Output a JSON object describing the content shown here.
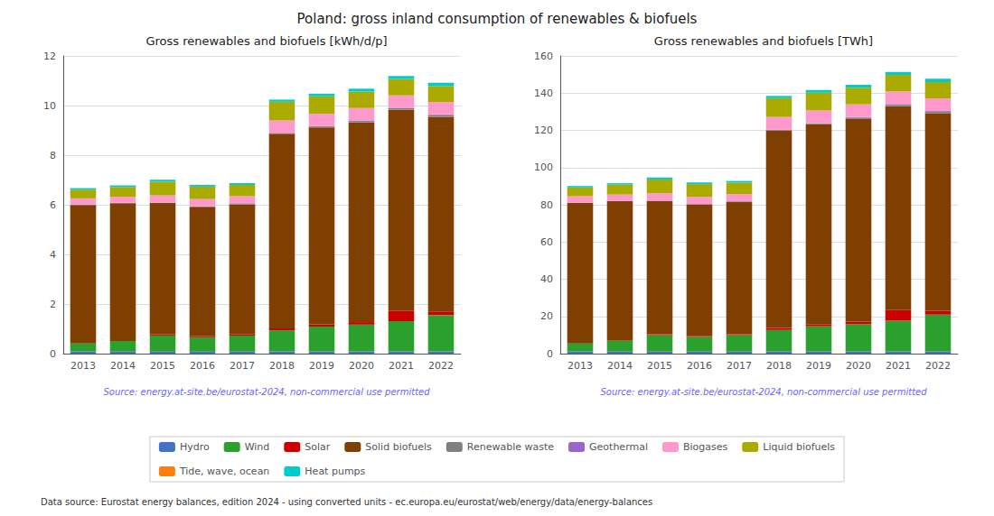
{
  "title": "Poland: gross inland consumption of renewables & biofuels",
  "annotations": [
    "Data source: Eurostat energy balances, edition 2024 - using converted units - ec.europa.eu/eurostat/web/energy/data/energy-balances"
  ],
  "legend": "bottom",
  "chart_data": [
    {
      "type": "bar",
      "stacked": true,
      "grid": true,
      "title": "Gross renewables and biofuels [kWh/d/p]",
      "annotations": [
        "Source: energy.at-site.be/eurostat-2024, non-commercial use permitted"
      ],
      "categories": [
        "2013",
        "2014",
        "2015",
        "2016",
        "2017",
        "2018",
        "2019",
        "2020",
        "2021",
        "2022"
      ],
      "ylim": [
        0,
        12
      ],
      "yticks": [
        0,
        2,
        4,
        6,
        8,
        10,
        12
      ],
      "series": [
        {
          "name": "Hydro",
          "color": "#4472c4",
          "values": [
            0.09,
            0.08,
            0.08,
            0.08,
            0.08,
            0.09,
            0.09,
            0.09,
            0.09,
            0.09
          ]
        },
        {
          "name": "Wind",
          "color": "#2ca02c",
          "values": [
            0.32,
            0.43,
            0.65,
            0.58,
            0.65,
            0.85,
            1.0,
            1.08,
            1.22,
            1.46
          ]
        },
        {
          "name": "Solar",
          "color": "#cc0000",
          "values": [
            0.0,
            0.0,
            0.04,
            0.04,
            0.04,
            0.08,
            0.08,
            0.1,
            0.42,
            0.15
          ]
        },
        {
          "name": "Solid biofuels",
          "color": "#7f3f00",
          "values": [
            5.58,
            5.55,
            5.3,
            5.22,
            5.25,
            7.84,
            7.95,
            8.05,
            8.1,
            7.85
          ]
        },
        {
          "name": "Renewable waste",
          "color": "#808080",
          "values": [
            0.01,
            0.01,
            0.01,
            0.01,
            0.03,
            0.03,
            0.04,
            0.06,
            0.06,
            0.07
          ]
        },
        {
          "name": "Geothermal",
          "color": "#9966cc",
          "values": [
            0.01,
            0.01,
            0.01,
            0.01,
            0.01,
            0.01,
            0.01,
            0.02,
            0.02,
            0.02
          ]
        },
        {
          "name": "Biogases",
          "color": "#ff99cc",
          "values": [
            0.25,
            0.25,
            0.29,
            0.29,
            0.29,
            0.5,
            0.5,
            0.5,
            0.5,
            0.5
          ]
        },
        {
          "name": "Liquid biofuels",
          "color": "#aaaa00",
          "values": [
            0.35,
            0.39,
            0.55,
            0.5,
            0.45,
            0.75,
            0.7,
            0.66,
            0.66,
            0.65
          ]
        },
        {
          "name": "Tide, wave, ocean",
          "color": "#ff7f0e",
          "values": [
            0.0,
            0.0,
            0.0,
            0.0,
            0.0,
            0.0,
            0.0,
            0.0,
            0.0,
            0.0
          ]
        },
        {
          "name": "Heat pumps",
          "color": "#00cccc",
          "values": [
            0.06,
            0.06,
            0.08,
            0.07,
            0.07,
            0.09,
            0.11,
            0.12,
            0.12,
            0.13
          ]
        }
      ]
    },
    {
      "type": "bar",
      "stacked": true,
      "grid": true,
      "title": "Gross renewables and biofuels [TWh]",
      "annotations": [
        "Source: energy.at-site.be/eurostat-2024, non-commercial use permitted"
      ],
      "categories": [
        "2013",
        "2014",
        "2015",
        "2016",
        "2017",
        "2018",
        "2019",
        "2020",
        "2021",
        "2022"
      ],
      "ylim": [
        0,
        160
      ],
      "yticks": [
        0,
        20,
        40,
        60,
        80,
        100,
        120,
        140,
        160
      ],
      "series": [
        {
          "name": "Hydro",
          "color": "#4472c4",
          "values": [
            1.2,
            1.1,
            1.1,
            1.1,
            1.1,
            1.2,
            1.2,
            1.2,
            1.2,
            1.2
          ]
        },
        {
          "name": "Wind",
          "color": "#2ca02c",
          "values": [
            4.3,
            5.8,
            8.8,
            7.9,
            8.8,
            11.5,
            13.5,
            14.6,
            16.5,
            19.8
          ]
        },
        {
          "name": "Solar",
          "color": "#cc0000",
          "values": [
            0.0,
            0.0,
            0.5,
            0.5,
            0.5,
            1.1,
            1.1,
            1.4,
            5.7,
            2.0
          ]
        },
        {
          "name": "Solid biofuels",
          "color": "#7f3f00",
          "values": [
            75.5,
            75.0,
            71.7,
            70.7,
            71.0,
            106.1,
            107.5,
            108.9,
            109.6,
            106.2
          ]
        },
        {
          "name": "Renewable waste",
          "color": "#808080",
          "values": [
            0.1,
            0.1,
            0.1,
            0.1,
            0.4,
            0.4,
            0.5,
            0.8,
            0.8,
            0.9
          ]
        },
        {
          "name": "Geothermal",
          "color": "#9966cc",
          "values": [
            0.1,
            0.1,
            0.1,
            0.1,
            0.1,
            0.1,
            0.1,
            0.3,
            0.3,
            0.3
          ]
        },
        {
          "name": "Biogases",
          "color": "#ff99cc",
          "values": [
            3.4,
            3.4,
            3.9,
            3.9,
            3.9,
            6.8,
            6.8,
            6.8,
            6.8,
            6.8
          ]
        },
        {
          "name": "Liquid biofuels",
          "color": "#aaaa00",
          "values": [
            4.7,
            5.3,
            7.4,
            6.8,
            6.1,
            10.1,
            9.5,
            8.9,
            8.9,
            8.8
          ]
        },
        {
          "name": "Tide, wave, ocean",
          "color": "#ff7f0e",
          "values": [
            0.0,
            0.0,
            0.0,
            0.0,
            0.0,
            0.0,
            0.0,
            0.0,
            0.0,
            0.0
          ]
        },
        {
          "name": "Heat pumps",
          "color": "#00cccc",
          "values": [
            0.8,
            0.8,
            1.1,
            0.9,
            0.9,
            1.2,
            1.5,
            1.6,
            1.6,
            1.8
          ]
        }
      ]
    }
  ]
}
